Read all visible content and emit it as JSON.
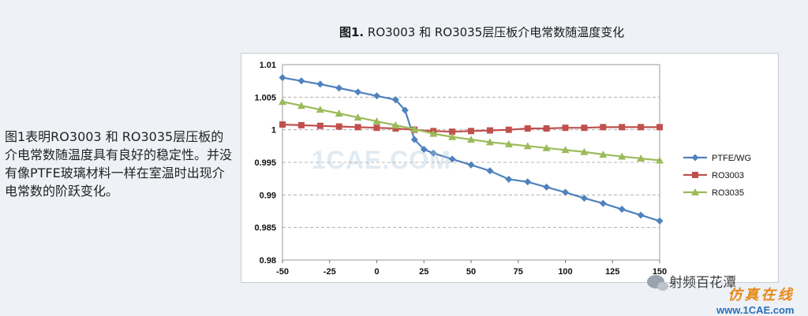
{
  "title": {
    "prefix": "图1.",
    "text": " RO3003 和 RO3035层压板介电常数随温度变化"
  },
  "description": "图1表明RO3003 和 RO3035层压板的介电常数随温度具有良好的稳定性。并没有像PTFE玻璃材料一样在室温时出现介电常数的阶跃变化。",
  "watermark": "1CAE.COM",
  "branding": {
    "wechat": "射频百花潭",
    "site_cn": "仿真在线",
    "site_url": "www.1CAE.com"
  },
  "chart_data": {
    "type": "line",
    "title": "",
    "xlabel": "",
    "ylabel": "",
    "x": [
      -50,
      -40,
      -30,
      -20,
      -10,
      0,
      10,
      15,
      20,
      25,
      30,
      40,
      50,
      60,
      70,
      80,
      90,
      100,
      110,
      120,
      130,
      140,
      150
    ],
    "xlim": [
      -50,
      150
    ],
    "ylim": [
      0.98,
      1.01
    ],
    "xticks": [
      "-50",
      "-25",
      "0",
      "25",
      "50",
      "75",
      "100",
      "125",
      "150"
    ],
    "yticks": [
      "0.98",
      "0.985",
      "0.99",
      "0.995",
      "1",
      "1.005",
      "1.01"
    ],
    "grid": "horizontal-dashed",
    "legend_position": "right",
    "series": [
      {
        "name": "PTFE/WG",
        "color": "#4f81bd",
        "marker": "diamond",
        "x": [
          -50,
          -40,
          -30,
          -20,
          -10,
          0,
          10,
          15,
          20,
          25,
          30,
          40,
          50,
          60,
          70,
          80,
          90,
          100,
          110,
          120,
          130,
          140,
          150
        ],
        "values": [
          1.008,
          1.0075,
          1.007,
          1.0064,
          1.0058,
          1.0052,
          1.0046,
          1.003,
          0.9985,
          0.997,
          0.9964,
          0.9955,
          0.9946,
          0.9937,
          0.9924,
          0.992,
          0.9912,
          0.9904,
          0.9895,
          0.9887,
          0.9878,
          0.9869,
          0.986
        ]
      },
      {
        "name": "RO3003",
        "color": "#c0504d",
        "marker": "square",
        "x": [
          -50,
          -40,
          -30,
          -20,
          -10,
          0,
          10,
          20,
          30,
          40,
          50,
          60,
          70,
          80,
          90,
          100,
          110,
          120,
          130,
          140,
          150
        ],
        "values": [
          1.0008,
          1.0007,
          1.0006,
          1.0005,
          1.0004,
          1.0003,
          1.0002,
          1.0,
          0.9998,
          0.9997,
          0.9998,
          0.9999,
          1.0,
          1.0002,
          1.0002,
          1.0003,
          1.0003,
          1.0004,
          1.0004,
          1.0004,
          1.0004
        ]
      },
      {
        "name": "RO3035",
        "color": "#9bbb59",
        "marker": "triangle",
        "x": [
          -50,
          -40,
          -30,
          -20,
          -10,
          0,
          10,
          20,
          30,
          40,
          50,
          60,
          70,
          80,
          90,
          100,
          110,
          120,
          130,
          140,
          150
        ],
        "values": [
          1.0043,
          1.0037,
          1.0031,
          1.0025,
          1.0019,
          1.0013,
          1.0007,
          1.0001,
          0.9994,
          0.9989,
          0.9985,
          0.9981,
          0.9978,
          0.9975,
          0.9972,
          0.9969,
          0.9966,
          0.9962,
          0.9959,
          0.9956,
          0.9953
        ]
      }
    ]
  }
}
